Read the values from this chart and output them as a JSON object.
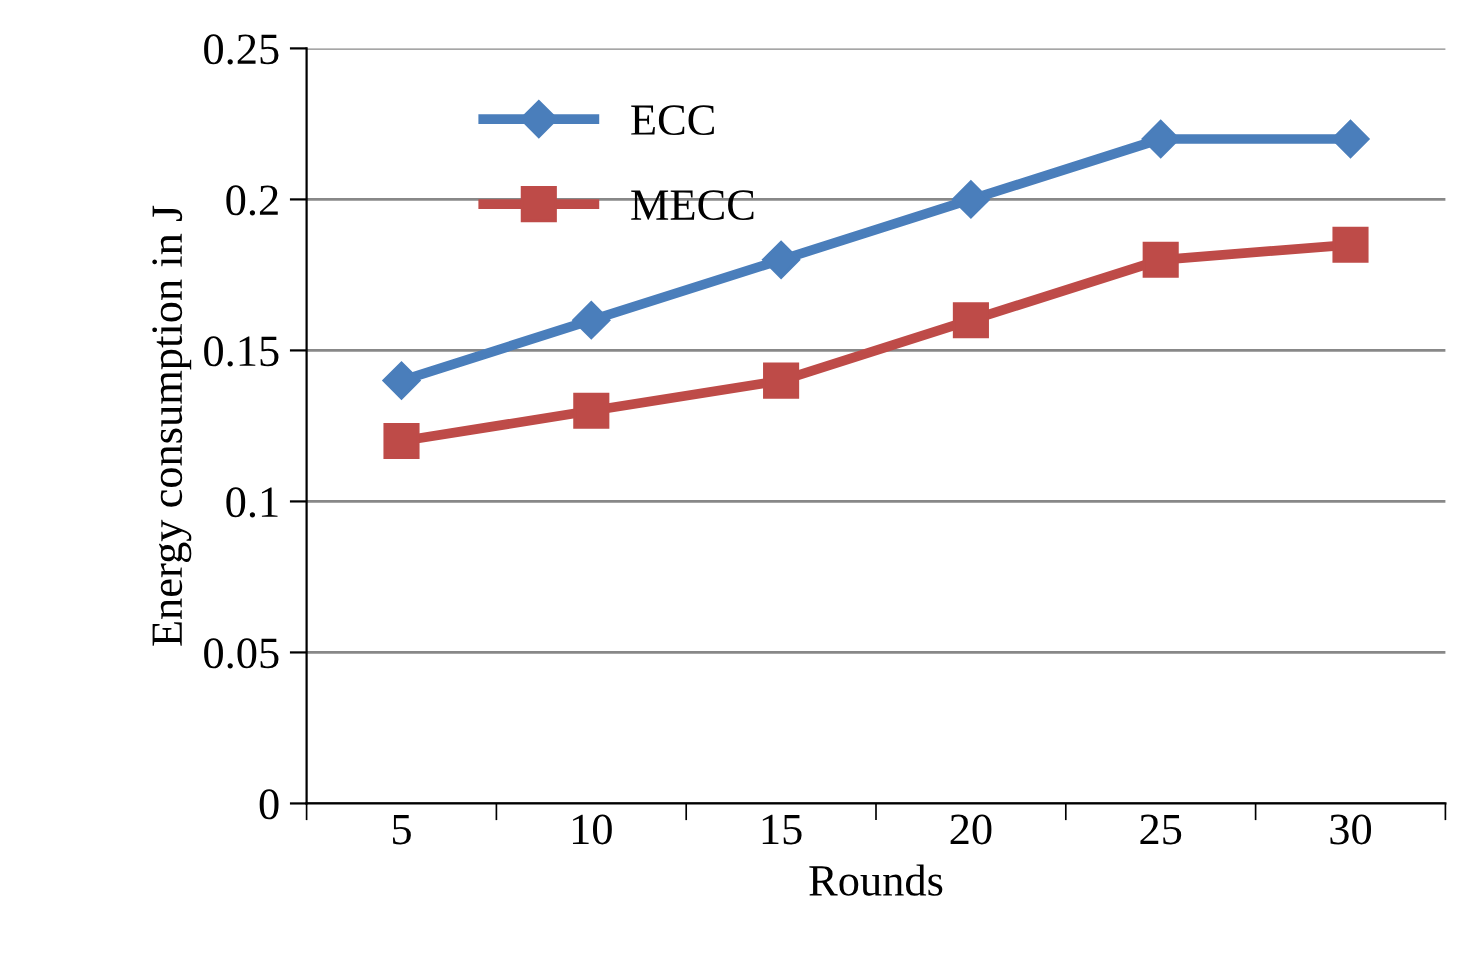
{
  "chart_data": {
    "type": "line",
    "xlabel": "Rounds",
    "ylabel": "Energy consumption in J",
    "categories": [
      "5",
      "10",
      "15",
      "20",
      "25",
      "30"
    ],
    "series": [
      {
        "name": "ECC",
        "color": "#4a7ebb",
        "marker": "diamond",
        "values": [
          0.14,
          0.16,
          0.18,
          0.2,
          0.22,
          0.22
        ]
      },
      {
        "name": "MECC",
        "color": "#be4b48",
        "marker": "square",
        "values": [
          0.12,
          0.13,
          0.14,
          0.16,
          0.18,
          0.185
        ]
      }
    ],
    "ylim": [
      0,
      0.25
    ],
    "yticks": [
      0,
      0.05,
      0.1,
      0.15,
      0.2,
      0.25
    ],
    "grid": "y",
    "legend": "top left",
    "line_style": "solid"
  }
}
